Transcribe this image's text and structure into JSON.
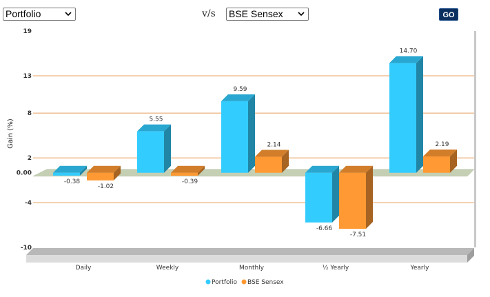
{
  "controls": {
    "left_select": "Portfolio",
    "vs_text": "v/s",
    "right_select": "BSE Sensex",
    "go_label": "GO"
  },
  "colors": {
    "portfolio": "#33ccff",
    "sensex": "#ff9933",
    "gridline": "#e8a060"
  },
  "chart_data": {
    "type": "bar",
    "categories": [
      "Daily",
      "Weekly",
      "Monthly",
      "½ Yearly",
      "Yearly"
    ],
    "series": [
      {
        "name": "Portfolio",
        "values": [
          -0.38,
          5.55,
          9.59,
          -6.66,
          14.7
        ]
      },
      {
        "name": "BSE Sensex",
        "values": [
          -1.02,
          -0.39,
          2.14,
          -7.51,
          2.19
        ]
      }
    ],
    "data_labels": [
      [
        "-0.38",
        "5.55",
        "9.59",
        "-6.66",
        "14.70"
      ],
      [
        "-1.02",
        "-0.39",
        "2.14",
        "-7.51",
        "2.19"
      ]
    ],
    "ylabel": "Gain (%)",
    "ylim": [
      -10,
      19
    ],
    "yticks": [
      "19",
      "13",
      "8",
      "2",
      "0.00",
      "-4",
      "-10"
    ],
    "ytick_values": [
      19,
      13,
      8,
      2,
      0,
      -4,
      -10
    ],
    "grid": true,
    "legend": "bottom-center"
  }
}
